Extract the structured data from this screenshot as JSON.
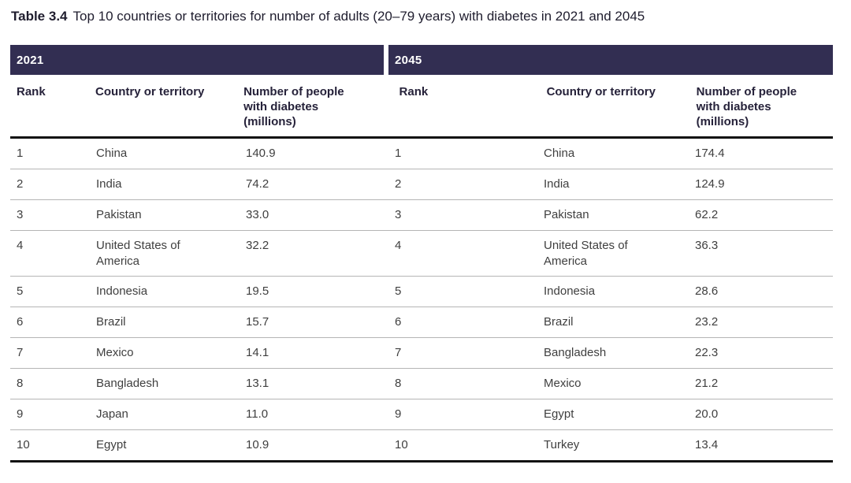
{
  "page": {
    "title_label": "Table 3.4",
    "title_text": "Top 10 countries or territories for number of adults (20–79 years) with diabetes in 2021 and 2045"
  },
  "columns": {
    "rank": "Rank",
    "country": "Country or territory",
    "number": "Number of people with diabetes (millions)"
  },
  "sections": [
    {
      "year": "2021",
      "rows": [
        {
          "rank": "1",
          "country": "China",
          "value": "140.9"
        },
        {
          "rank": "2",
          "country": "India",
          "value": "74.2"
        },
        {
          "rank": "3",
          "country": "Pakistan",
          "value": "33.0"
        },
        {
          "rank": "4",
          "country": "United States of America",
          "value": "32.2"
        },
        {
          "rank": "5",
          "country": "Indonesia",
          "value": "19.5"
        },
        {
          "rank": "6",
          "country": "Brazil",
          "value": "15.7"
        },
        {
          "rank": "7",
          "country": "Mexico",
          "value": "14.1"
        },
        {
          "rank": "8",
          "country": "Bangladesh",
          "value": "13.1"
        },
        {
          "rank": "9",
          "country": "Japan",
          "value": "11.0"
        },
        {
          "rank": "10",
          "country": "Egypt",
          "value": "10.9"
        }
      ]
    },
    {
      "year": "2045",
      "rows": [
        {
          "rank": "1",
          "country": "China",
          "value": "174.4"
        },
        {
          "rank": "2",
          "country": "India",
          "value": "124.9"
        },
        {
          "rank": "3",
          "country": "Pakistan",
          "value": "62.2"
        },
        {
          "rank": "4",
          "country": "United States of America",
          "value": "36.3"
        },
        {
          "rank": "5",
          "country": "Indonesia",
          "value": "28.6"
        },
        {
          "rank": "6",
          "country": "Brazil",
          "value": "23.2"
        },
        {
          "rank": "7",
          "country": "Bangladesh",
          "value": "22.3"
        },
        {
          "rank": "8",
          "country": "Mexico",
          "value": "21.2"
        },
        {
          "rank": "9",
          "country": "Egypt",
          "value": "20.0"
        },
        {
          "rank": "10",
          "country": "Turkey",
          "value": "13.4"
        }
      ]
    }
  ],
  "colors": {
    "band_background": "#322e52",
    "band_text": "#ffffff",
    "header_text": "#26223a",
    "body_text": "#3f3f3f",
    "thin_divider": "#b5b5b5",
    "thick_divider": "#121212"
  }
}
